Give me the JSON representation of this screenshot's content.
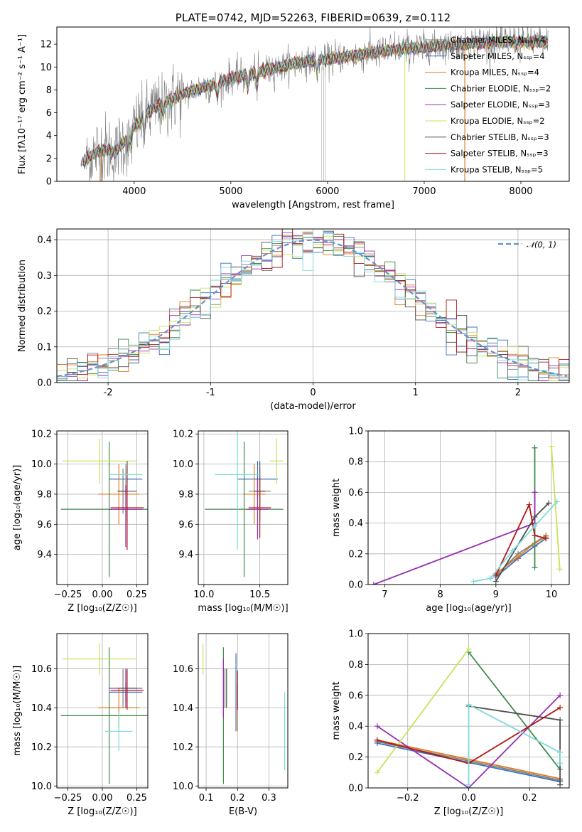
{
  "colors": {
    "Chabrier MILES": "#7f7f7f",
    "Salpeter MILES": "#3b6fc0",
    "Kroupa MILES": "#e07b20",
    "Chabrier ELODIE": "#3e8a4a",
    "Salpeter ELODIE": "#9630b0",
    "Kroupa ELODIE": "#c8e35a",
    "Chabrier STELIB": "#4d4d4d",
    "Salpeter STELIB": "#b01818",
    "Kroupa STELIB": "#7fd9d9",
    "data": "#808080",
    "gauss": "#6a8fd0"
  },
  "chart_data": [
    {
      "id": "spectrum",
      "type": "line",
      "title": "PLATE=0742, MJD=52263, FIBERID=0639, z=0.112",
      "xlabel": "wavelength [Angstrom, rest frame]",
      "ylabel": "Flux [fλ10⁻¹⁷ erg cm⁻² s⁻¹ A⁻¹]",
      "xlim": [
        3200,
        8500
      ],
      "ylim": [
        0,
        13.5
      ],
      "xticks": [
        4000,
        5000,
        6000,
        7000,
        8000
      ],
      "yticks": [
        0,
        2,
        4,
        6,
        8,
        10,
        12
      ],
      "legend_position": "upper right",
      "legend": [
        "Chabrier MILES, Nₛₛₚ=4",
        "Salpeter MILES, Nₛₛₚ=4",
        "Kroupa MILES, Nₛₛₚ=4",
        "Chabrier ELODIE, Nₛₛₚ=2",
        "Salpeter ELODIE, Nₛₛₚ=3",
        "Kroupa ELODIE, Nₛₛₚ=2",
        "Chabrier STELIB, Nₛₛₚ=3",
        "Salpeter STELIB, Nₛₛₚ=3",
        "Kroupa STELIB, Nₛₛₚ=5"
      ],
      "continuum_wavelength": [
        3450,
        3600,
        3700,
        3800,
        3900,
        4000,
        4100,
        4200,
        4300,
        4400,
        4500,
        4600,
        4800,
        5000,
        5200,
        5400,
        5600,
        5800,
        6000,
        6200,
        6400,
        6600,
        6800,
        7000,
        7200,
        7400,
        7600,
        7800,
        8000,
        8200,
        8300
      ],
      "continuum_flux": [
        1.6,
        2.5,
        2.8,
        2.5,
        3.5,
        4.8,
        5.6,
        6.4,
        6.8,
        7.2,
        7.6,
        7.9,
        8.4,
        9.0,
        9.4,
        9.8,
        10.2,
        10.5,
        10.7,
        10.9,
        11.2,
        11.4,
        11.6,
        11.7,
        11.9,
        12.0,
        12.1,
        12.2,
        12.2,
        12.2,
        12.1
      ]
    },
    {
      "id": "residuals",
      "type": "histogram",
      "xlabel": "(data-model)/error",
      "ylabel": "Normed distribution",
      "xlim": [
        -2.5,
        2.5
      ],
      "ylim": [
        0,
        0.43
      ],
      "xticks": [
        -2,
        -1,
        0,
        1,
        2
      ],
      "yticks": [
        0.0,
        0.1,
        0.2,
        0.3,
        0.4
      ],
      "legend": [
        "𝒩(0, 1)"
      ],
      "legend_position": "upper right",
      "bin_width": 0.1
    },
    {
      "id": "age-vs-Z",
      "type": "errorbar",
      "xlabel": "Z [log₁₀(Z/Z☉)]",
      "ylabel": "age  [log₁₀(age/yr)]",
      "xlim": [
        -0.33,
        0.33
      ],
      "ylim": [
        9.2,
        10.22
      ],
      "xticks": [
        -0.25,
        0.0,
        0.25
      ],
      "xticklabels": [
        "−0.25",
        "0.00",
        "0.25"
      ],
      "yticks": [
        9.4,
        9.6,
        9.8,
        10.0,
        10.2
      ],
      "points": [
        {
          "model": "Chabrier MILES",
          "x": 0.15,
          "xerr": 0.03,
          "y": 9.82,
          "yerr": 0.15
        },
        {
          "model": "Salpeter MILES",
          "x": 0.17,
          "xerr": 0.12,
          "y": 9.9,
          "yerr": 0.1
        },
        {
          "model": "Kroupa MILES",
          "x": 0.12,
          "xerr": 0.15,
          "y": 9.8,
          "yerr": 0.2
        },
        {
          "model": "Chabrier ELODIE",
          "x": 0.05,
          "xerr": 0.35,
          "y": 9.7,
          "yerr": 0.45
        },
        {
          "model": "Salpeter ELODIE",
          "x": 0.17,
          "xerr": 0.12,
          "y": 9.7,
          "yerr": 0.25
        },
        {
          "model": "Kroupa ELODIE",
          "x": -0.02,
          "xerr": 0.27,
          "y": 10.02,
          "yerr": 0.15
        },
        {
          "model": "Chabrier STELIB",
          "x": 0.18,
          "xerr": 0.07,
          "y": 9.82,
          "yerr": 0.2
        },
        {
          "model": "Salpeter STELIB",
          "x": 0.18,
          "xerr": 0.12,
          "y": 9.71,
          "yerr": 0.28
        },
        {
          "model": "Kroupa STELIB",
          "x": 0.17,
          "xerr": 0.12,
          "y": 9.93,
          "yerr": 0.07
        }
      ]
    },
    {
      "id": "age-vs-mass",
      "type": "errorbar",
      "xlabel": "mass [log₁₀(M/M☉)]",
      "xlim": [
        9.95,
        10.75
      ],
      "ylim": [
        9.2,
        10.22
      ],
      "xticks": [
        10.0,
        10.5
      ],
      "xticklabels": [
        "10.0",
        "10.5"
      ],
      "yticks": [
        9.4,
        9.6,
        9.8,
        10.0,
        10.2
      ],
      "points": [
        {
          "model": "Chabrier MILES",
          "x": 10.5,
          "xerr": 0.1,
          "y": 9.82,
          "yerr": 0.15
        },
        {
          "model": "Salpeter MILES",
          "x": 10.48,
          "xerr": 0.18,
          "y": 9.9,
          "yerr": 0.12
        },
        {
          "model": "Kroupa MILES",
          "x": 10.45,
          "xerr": 0.1,
          "y": 9.8,
          "yerr": 0.2
        },
        {
          "model": "Chabrier ELODIE",
          "x": 10.36,
          "xerr": 0.35,
          "y": 9.7,
          "yerr": 0.45
        },
        {
          "model": "Salpeter ELODIE",
          "x": 10.48,
          "xerr": 0.1,
          "y": 9.7,
          "yerr": 0.2
        },
        {
          "model": "Kroupa ELODIE",
          "x": 10.65,
          "xerr": 0.06,
          "y": 10.02,
          "yerr": 0.15
        },
        {
          "model": "Chabrier STELIB",
          "x": 10.5,
          "xerr": 0.05,
          "y": 9.82,
          "yerr": 0.2
        },
        {
          "model": "Salpeter STELIB",
          "x": 10.5,
          "xerr": 0.1,
          "y": 9.71,
          "yerr": 0.2
        },
        {
          "model": "Kroupa STELIB",
          "x": 10.3,
          "xerr": 0.2,
          "y": 9.93,
          "yerr": 0.5
        }
      ]
    },
    {
      "id": "weight-vs-age",
      "type": "line",
      "xlabel": "age  [log₁₀(age/yr)]",
      "ylabel": "mass weight",
      "xlim": [
        6.7,
        10.32
      ],
      "ylim": [
        0,
        1.0
      ],
      "xticks": [
        7,
        8,
        9,
        10
      ],
      "yticks": [
        0.0,
        0.2,
        0.4,
        0.6,
        0.8,
        1.0
      ],
      "series": [
        {
          "model": "Chabrier MILES",
          "x": [
            9.0,
            9.4,
            9.9
          ],
          "y": [
            0.06,
            0.2,
            0.32
          ]
        },
        {
          "model": "Salpeter MILES",
          "x": [
            9.0,
            9.4,
            9.7,
            9.9
          ],
          "y": [
            0.05,
            0.17,
            0.25,
            0.3
          ]
        },
        {
          "model": "Kroupa MILES",
          "x": [
            9.0,
            9.4,
            9.7,
            9.9
          ],
          "y": [
            0.07,
            0.18,
            0.27,
            0.31
          ]
        },
        {
          "model": "Chabrier ELODIE",
          "x": [
            9.7,
            9.7
          ],
          "y": [
            0.11,
            0.89
          ]
        },
        {
          "model": "Salpeter ELODIE",
          "x": [
            6.8,
            9.7,
            9.7
          ],
          "y": [
            0.0,
            0.4,
            0.6
          ]
        },
        {
          "model": "Kroupa ELODIE",
          "x": [
            10.0,
            10.15
          ],
          "y": [
            0.9,
            0.1
          ]
        },
        {
          "model": "Chabrier STELIB",
          "x": [
            9.0,
            9.7,
            9.95
          ],
          "y": [
            0.02,
            0.44,
            0.53
          ]
        },
        {
          "model": "Salpeter STELIB",
          "x": [
            9.0,
            9.6,
            9.7,
            9.9
          ],
          "y": [
            0.06,
            0.52,
            0.32,
            0.3
          ]
        },
        {
          "model": "Kroupa STELIB",
          "x": [
            8.6,
            8.9,
            9.3,
            9.7,
            10.1
          ],
          "y": [
            0.02,
            0.04,
            0.22,
            0.38,
            0.54
          ]
        }
      ]
    },
    {
      "id": "mass-vs-Z",
      "type": "errorbar",
      "xlabel": "Z [log₁₀(Z/Z☉)]",
      "ylabel": "mass [log₁₀(M/M☉)]",
      "xlim": [
        -0.33,
        0.33
      ],
      "ylim": [
        9.99,
        10.78
      ],
      "xticks": [
        -0.25,
        0.0,
        0.25
      ],
      "xticklabels": [
        "−0.25",
        "0.00",
        "0.25"
      ],
      "yticks": [
        10.0,
        10.2,
        10.4,
        10.6
      ],
      "points": [
        {
          "model": "Chabrier MILES",
          "x": 0.15,
          "xerr": 0.03,
          "y": 10.5,
          "yerr": 0.1
        },
        {
          "model": "Salpeter MILES",
          "x": 0.17,
          "xerr": 0.12,
          "y": 10.48,
          "yerr": 0.05
        },
        {
          "model": "Kroupa MILES",
          "x": 0.12,
          "xerr": 0.15,
          "y": 10.4,
          "yerr": 0.1
        },
        {
          "model": "Chabrier ELODIE",
          "x": 0.05,
          "xerr": 0.35,
          "y": 10.36,
          "yerr": 0.35
        },
        {
          "model": "Salpeter ELODIE",
          "x": 0.17,
          "xerr": 0.12,
          "y": 10.5,
          "yerr": 0.1
        },
        {
          "model": "Kroupa ELODIE",
          "x": -0.02,
          "xerr": 0.27,
          "y": 10.65,
          "yerr": 0.08
        },
        {
          "model": "Chabrier STELIB",
          "x": 0.18,
          "xerr": 0.07,
          "y": 10.5,
          "yerr": 0.1
        },
        {
          "model": "Salpeter STELIB",
          "x": 0.18,
          "xerr": 0.12,
          "y": 10.49,
          "yerr": 0.1
        },
        {
          "model": "Kroupa STELIB",
          "x": 0.12,
          "xerr": 0.1,
          "y": 10.28,
          "yerr": 0.1
        }
      ]
    },
    {
      "id": "mass-vs-ebv",
      "type": "errorbar",
      "xlabel": "E(B-V)",
      "xlim": [
        0.075,
        0.36
      ],
      "ylim": [
        9.99,
        10.78
      ],
      "xticks": [
        0.1,
        0.2,
        0.3
      ],
      "xticklabels": [
        "0.1",
        "0.2",
        "0.3"
      ],
      "yticks": [
        10.0,
        10.2,
        10.4,
        10.6
      ],
      "points": [
        {
          "model": "Chabrier MILES",
          "x": 0.16,
          "y": 10.5,
          "yerr": 0.1
        },
        {
          "model": "Salpeter MILES",
          "x": 0.195,
          "y": 10.48,
          "yerr": 0.2
        },
        {
          "model": "Kroupa MILES",
          "x": 0.2,
          "y": 10.4,
          "yerr": 0.12
        },
        {
          "model": "Chabrier ELODIE",
          "x": 0.155,
          "y": 10.36,
          "yerr": 0.35
        },
        {
          "model": "Salpeter ELODIE",
          "x": 0.155,
          "y": 10.5,
          "yerr": 0.15
        },
        {
          "model": "Kroupa ELODIE",
          "x": 0.09,
          "y": 10.65,
          "yerr": 0.08
        },
        {
          "model": "Chabrier STELIB",
          "x": 0.165,
          "y": 10.5,
          "yerr": 0.1
        },
        {
          "model": "Salpeter STELIB",
          "x": 0.2,
          "y": 10.49,
          "yerr": 0.1
        },
        {
          "model": "Kroupa STELIB",
          "x": 0.35,
          "y": 10.28,
          "yerr": 0.2
        }
      ]
    },
    {
      "id": "weight-vs-Z",
      "type": "line",
      "xlabel": "Z [log₁₀(Z/Z☉)]",
      "ylabel": "mass weight",
      "xlim": [
        -0.33,
        0.33
      ],
      "ylim": [
        0,
        1.0
      ],
      "xticks": [
        -0.2,
        0.0,
        0.2
      ],
      "xticklabels": [
        "−0.2",
        "0.0",
        "0.2"
      ],
      "yticks": [
        0.0,
        0.2,
        0.4,
        0.6,
        0.8,
        1.0
      ],
      "series": [
        {
          "model": "Chabrier MILES",
          "x": [
            -0.3,
            0.3
          ],
          "y": [
            0.3,
            0.05
          ]
        },
        {
          "model": "Salpeter MILES",
          "x": [
            -0.3,
            0.3
          ],
          "y": [
            0.29,
            0.04
          ]
        },
        {
          "model": "Kroupa MILES",
          "x": [
            -0.3,
            0.3
          ],
          "y": [
            0.31,
            0.06
          ]
        },
        {
          "model": "Chabrier ELODIE",
          "x": [
            0.0,
            0.3
          ],
          "y": [
            0.88,
            0.12
          ]
        },
        {
          "model": "Salpeter ELODIE",
          "x": [
            -0.3,
            0.0,
            0.3
          ],
          "y": [
            0.4,
            0.0,
            0.6
          ]
        },
        {
          "model": "Kroupa ELODIE",
          "x": [
            -0.3,
            0.0
          ],
          "y": [
            0.1,
            0.9
          ]
        },
        {
          "model": "Chabrier STELIB",
          "x": [
            0.0,
            0.3,
            0.3
          ],
          "y": [
            0.53,
            0.44,
            0.02
          ]
        },
        {
          "model": "Salpeter STELIB",
          "x": [
            -0.3,
            0.0,
            0.3
          ],
          "y": [
            0.31,
            0.16,
            0.52
          ]
        },
        {
          "model": "Kroupa STELIB",
          "x": [
            0.0,
            0.0,
            0.3,
            0.3
          ],
          "y": [
            0.02,
            0.54,
            0.23,
            0.16
          ]
        }
      ]
    }
  ]
}
